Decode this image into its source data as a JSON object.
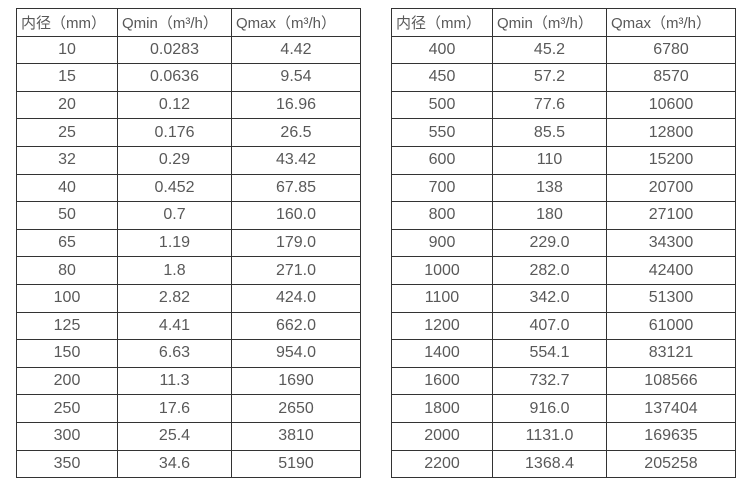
{
  "colors": {
    "border": "#333333",
    "text": "#595959",
    "background": "#ffffff"
  },
  "tables": [
    {
      "name": "flow-spec-table-small-diameters",
      "columns": [
        "内径（mm）",
        "Qmin（m³/h）",
        "Qmax（m³/h）"
      ],
      "rows": [
        [
          "10",
          "0.0283",
          "4.42"
        ],
        [
          "15",
          "0.0636",
          "9.54"
        ],
        [
          "20",
          "0.12",
          "16.96"
        ],
        [
          "25",
          "0.176",
          "26.5"
        ],
        [
          "32",
          "0.29",
          "43.42"
        ],
        [
          "40",
          "0.452",
          "67.85"
        ],
        [
          "50",
          "0.7",
          "160.0"
        ],
        [
          "65",
          "1.19",
          "179.0"
        ],
        [
          "80",
          "1.8",
          "271.0"
        ],
        [
          "100",
          "2.82",
          "424.0"
        ],
        [
          "125",
          "4.41",
          "662.0"
        ],
        [
          "150",
          "6.63",
          "954.0"
        ],
        [
          "200",
          "11.3",
          "1690"
        ],
        [
          "250",
          "17.6",
          "2650"
        ],
        [
          "300",
          "25.4",
          "3810"
        ],
        [
          "350",
          "34.6",
          "5190"
        ]
      ]
    },
    {
      "name": "flow-spec-table-large-diameters",
      "columns": [
        "内径（mm）",
        "Qmin（m³/h）",
        "Qmax（m³/h）"
      ],
      "rows": [
        [
          "400",
          "45.2",
          "6780"
        ],
        [
          "450",
          "57.2",
          "8570"
        ],
        [
          "500",
          "77.6",
          "10600"
        ],
        [
          "550",
          "85.5",
          "12800"
        ],
        [
          "600",
          "110",
          "15200"
        ],
        [
          "700",
          "138",
          "20700"
        ],
        [
          "800",
          "180",
          "27100"
        ],
        [
          "900",
          "229.0",
          "34300"
        ],
        [
          "1000",
          "282.0",
          "42400"
        ],
        [
          "1100",
          "342.0",
          "51300"
        ],
        [
          "1200",
          "407.0",
          "61000"
        ],
        [
          "1400",
          "554.1",
          "83121"
        ],
        [
          "1600",
          "732.7",
          "108566"
        ],
        [
          "1800",
          "916.0",
          "137404"
        ],
        [
          "2000",
          "1131.0",
          "169635"
        ],
        [
          "2200",
          "1368.4",
          "205258"
        ]
      ]
    }
  ]
}
